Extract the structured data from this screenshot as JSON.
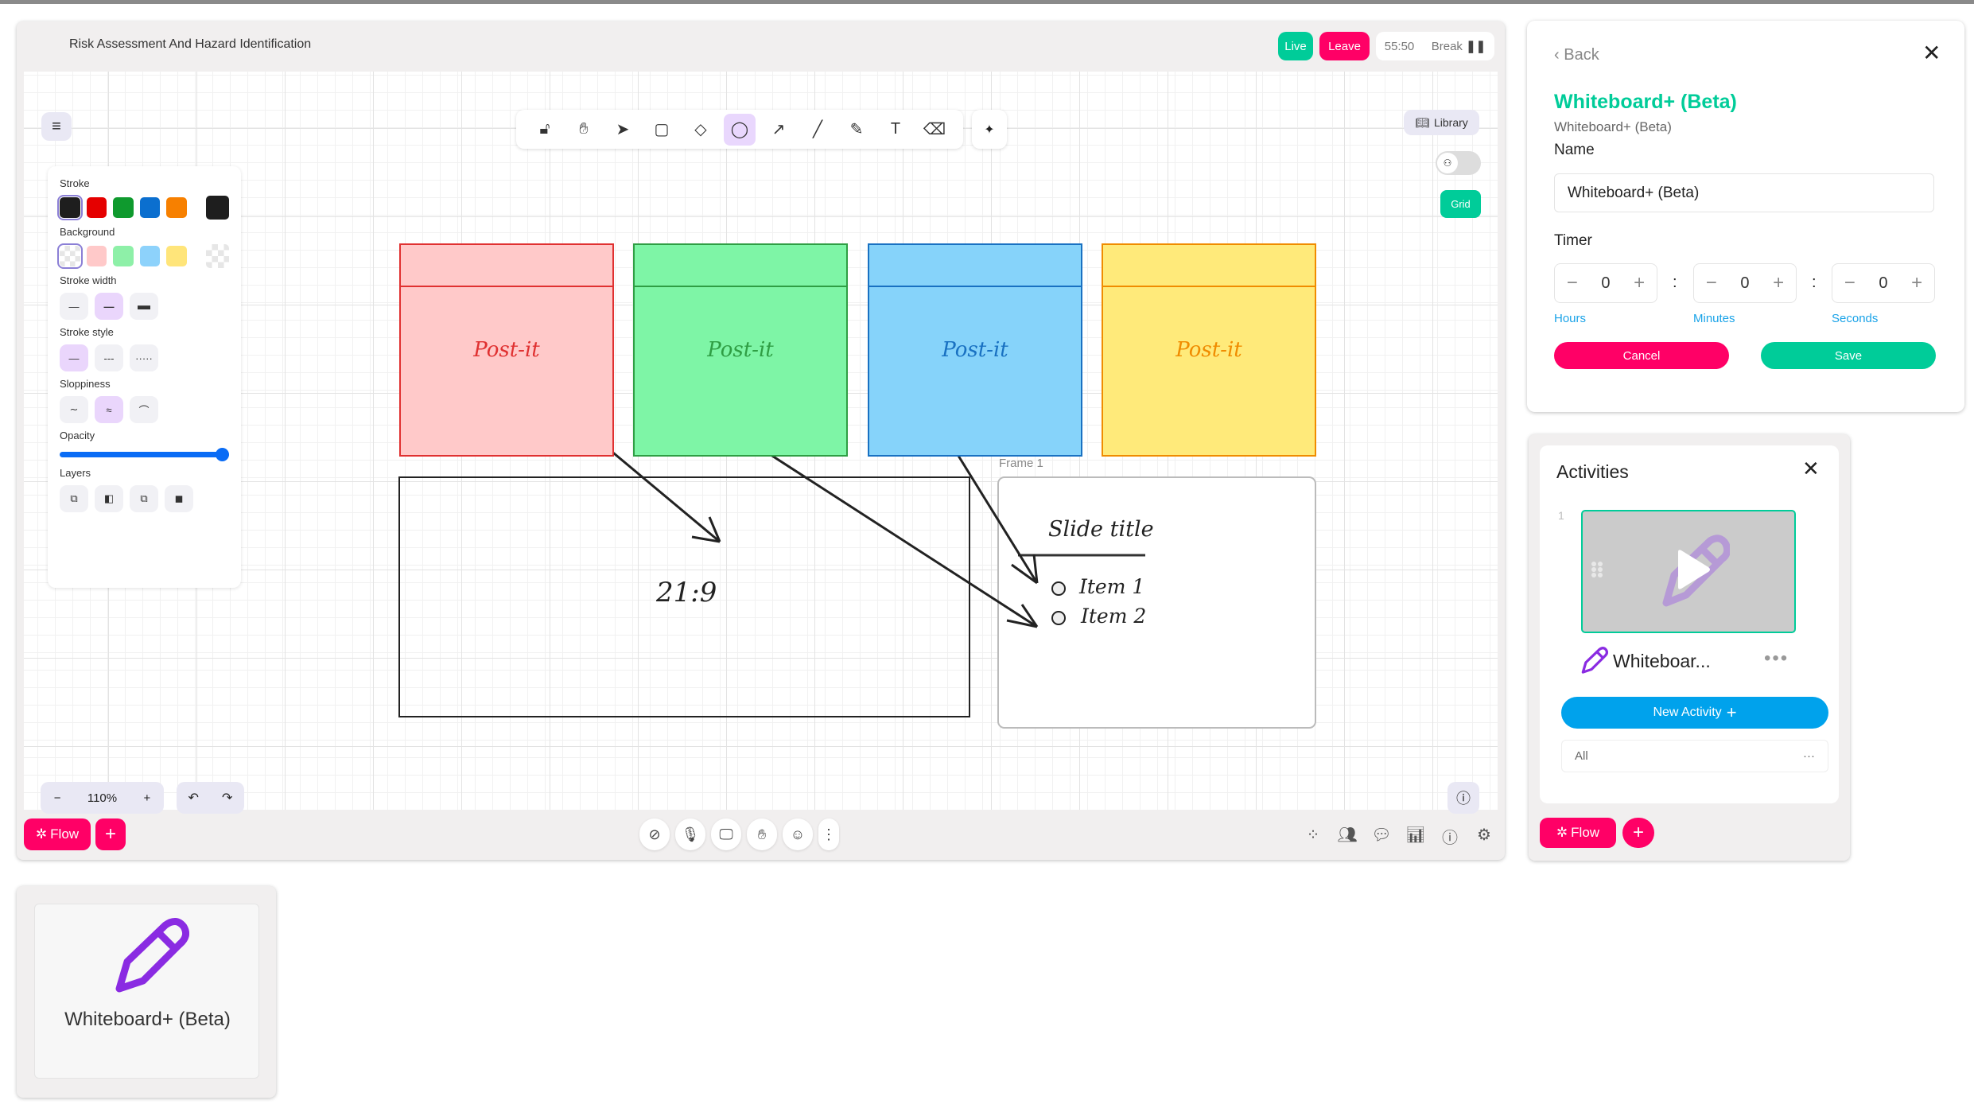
{
  "header": {
    "title": "Risk Assessment And Hazard Identification",
    "live": "Live",
    "leave": "Leave",
    "timer": "55:50",
    "break_label": "Break",
    "break_icon": "pause-icon"
  },
  "colors": {
    "accent_pink": "#ff0066",
    "accent_green": "#00cc99",
    "accent_blue": "#1aa3e8",
    "selection": "#e9d7fd"
  },
  "toolbar": {
    "tools": [
      "lock-icon",
      "hand-icon",
      "pointer-icon",
      "rectangle-icon",
      "diamond-icon",
      "ellipse-icon",
      "arrow-icon",
      "line-icon",
      "pencil-icon",
      "text-icon",
      "eraser-icon"
    ],
    "selected": "ellipse-icon",
    "extra": "laser-pointer-icon"
  },
  "library": {
    "label": "Library"
  },
  "grid": {
    "label": "Grid"
  },
  "props": {
    "stroke": "Stroke",
    "stroke_colors": [
      "#1e1e1e",
      "#e03131",
      "#2f9e44",
      "#1971c2",
      "#f08c00"
    ],
    "stroke_current": "#1e1e1e",
    "background": "Background",
    "background_colors": [
      "transparent",
      "#ffc9c9",
      "#b2f2bb",
      "#a5d8ff",
      "#ffec99"
    ],
    "stroke_width": "Stroke width",
    "stroke_style": "Stroke style",
    "sloppiness": "Sloppiness",
    "opacity": "Opacity",
    "opacity_value": 100,
    "layers": "Layers"
  },
  "board": {
    "postits": [
      {
        "text": "Post-it",
        "bg": "#ffc9c9",
        "border": "#e03131",
        "color": "#e03131"
      },
      {
        "text": "Post-it",
        "bg": "#7ef5a6",
        "border": "#2f9e44",
        "color": "#2f9e44"
      },
      {
        "text": "Post-it",
        "bg": "#86d3fa",
        "border": "#1971c2",
        "color": "#1971c2"
      },
      {
        "text": "Post-it",
        "bg": "#ffea7a",
        "border": "#f08c00",
        "color": "#f08c00"
      }
    ],
    "ratio": "21:9",
    "frame_label": "Frame 1",
    "slide_title": "Slide title",
    "items": [
      "Item 1",
      "Item 2"
    ]
  },
  "zoom": {
    "minus": "−",
    "value": "110%",
    "plus": "+"
  },
  "bottom": {
    "flow": "Flow",
    "add": "+",
    "center_icons": [
      "camera-off-icon",
      "mic-off-icon",
      "screen-share-icon",
      "raise-hand-icon",
      "emoji-icon",
      "more-icon"
    ],
    "right_icons": [
      "apps-icon",
      "participants-icon",
      "chat-icon",
      "poll-icon",
      "info-icon",
      "settings-icon"
    ]
  },
  "settings": {
    "back": "Back",
    "title": "Whiteboard+ (Beta)",
    "subtitle": "Whiteboard+ (Beta)",
    "name_label": "Name",
    "name_value": "Whiteboard+ (Beta)",
    "timer_label": "Timer",
    "hours": {
      "value": "0",
      "label": "Hours"
    },
    "minutes": {
      "value": "0",
      "label": "Minutes"
    },
    "seconds": {
      "value": "0",
      "label": "Seconds"
    },
    "cancel": "Cancel",
    "save": "Save"
  },
  "activities": {
    "title": "Activities",
    "index": "1",
    "activity_name": "Whiteboar...",
    "new_activity": "New Activity",
    "filter": "All",
    "flow": "Flow",
    "add": "+"
  },
  "preview": {
    "label": "Whiteboard+ (Beta)"
  }
}
